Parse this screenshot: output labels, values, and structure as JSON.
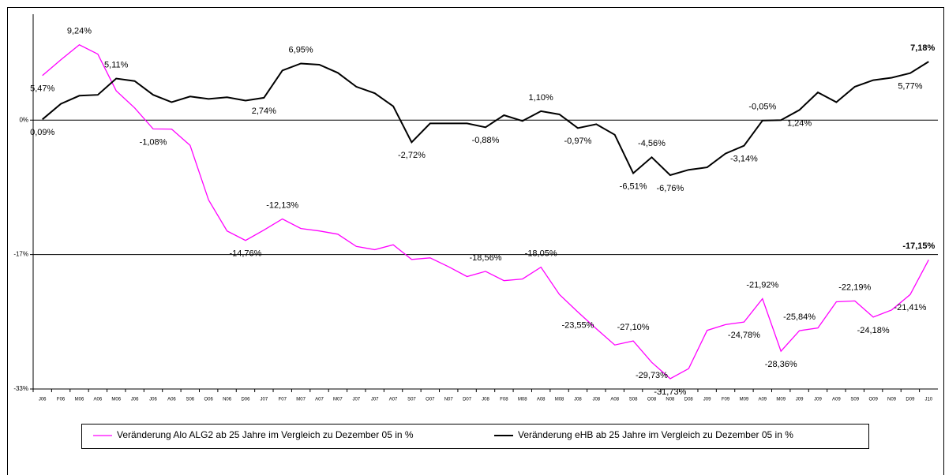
{
  "chart_data": {
    "type": "line",
    "categories": [
      "J06",
      "F06",
      "M06",
      "A06",
      "M06",
      "J06",
      "J06",
      "A06",
      "S06",
      "O06",
      "N06",
      "D06",
      "J07",
      "F07",
      "M07",
      "A07",
      "M07",
      "J07",
      "J07",
      "A07",
      "S07",
      "O07",
      "N07",
      "D07",
      "J08",
      "F08",
      "M08",
      "A08",
      "M08",
      "J08",
      "J08",
      "A08",
      "S08",
      "O08",
      "N08",
      "D08",
      "J09",
      "F09",
      "M09",
      "A09",
      "M09",
      "J09",
      "J09",
      "A09",
      "S09",
      "O09",
      "N09",
      "D09",
      "J10"
    ],
    "series": [
      {
        "name": "Veränderung Alo ALG2 ab 25 Jahre im Vergleich zu Dezember 05 in %",
        "color": "#ff00ff",
        "values": [
          5.47,
          7.4,
          9.24,
          8.1,
          3.6,
          1.5,
          -1.08,
          -1.1,
          -3.1,
          -9.8,
          -13.6,
          -14.76,
          -13.5,
          -12.13,
          -13.3,
          -13.6,
          -14.0,
          -15.5,
          -15.9,
          -15.3,
          -17.1,
          -16.9,
          -18.0,
          -19.2,
          -18.56,
          -19.7,
          -19.5,
          -18.05,
          -21.4,
          -23.55,
          -25.6,
          -27.6,
          -27.1,
          -29.73,
          -31.73,
          -30.5,
          -25.8,
          -25.1,
          -24.78,
          -21.92,
          -28.36,
          -25.84,
          -25.5,
          -22.3,
          -22.19,
          -24.18,
          -23.3,
          -21.41,
          -17.15
        ],
        "value_labels": [
          "5,47%",
          null,
          "9,24%",
          null,
          null,
          null,
          "-1,08%",
          null,
          null,
          null,
          null,
          "-14,76%",
          null,
          "-12,13%",
          null,
          null,
          null,
          null,
          null,
          null,
          null,
          null,
          null,
          null,
          "-18,56%",
          null,
          null,
          "-18,05%",
          null,
          "-23,55%",
          null,
          null,
          "-27,10%",
          "-29,73%",
          "-31,73%",
          null,
          null,
          null,
          "-24,78%",
          "-21,92%",
          "-28,36%",
          "-25,84%",
          null,
          null,
          "-22,19%",
          "-24,18%",
          null,
          "-21,41%",
          "-17,15%"
        ]
      },
      {
        "name": "Veränderung eHB ab 25 Jahre im Vergleich zu Dezember 05 in %",
        "color": "#000000",
        "values": [
          0.09,
          2.0,
          3.0,
          3.1,
          5.11,
          4.8,
          3.1,
          2.2,
          2.9,
          2.6,
          2.8,
          2.4,
          2.74,
          6.1,
          6.95,
          6.8,
          5.8,
          4.1,
          3.3,
          1.7,
          -2.72,
          -0.4,
          -0.4,
          -0.4,
          -0.88,
          0.6,
          -0.1,
          1.1,
          0.7,
          -0.97,
          -0.5,
          -1.8,
          -6.51,
          -4.56,
          -6.76,
          -6.1,
          -5.8,
          -4.1,
          -3.14,
          -0.05,
          0.0,
          1.24,
          3.4,
          2.2,
          4.1,
          4.9,
          5.2,
          5.77,
          7.18
        ],
        "value_labels": [
          "0,09%",
          null,
          null,
          null,
          "5,11%",
          null,
          null,
          null,
          null,
          null,
          null,
          null,
          "2,74%",
          null,
          "6,95%",
          null,
          null,
          null,
          null,
          null,
          "-2,72%",
          null,
          null,
          null,
          "-0,88%",
          null,
          null,
          "1,10%",
          null,
          "-0,97%",
          null,
          null,
          "-6,51%",
          "-4,56%",
          "-6,76%",
          null,
          null,
          null,
          "-3,14%",
          "-0,05%",
          null,
          "1,24%",
          null,
          null,
          null,
          null,
          null,
          "5,77%",
          "7,18%"
        ]
      }
    ],
    "ylim": [
      -33,
      13
    ],
    "yticks": [
      {
        "value": -33,
        "label": "-33%"
      },
      {
        "value": -16.5,
        "label": "-17%"
      },
      {
        "value": 0,
        "label": "0%"
      }
    ],
    "grid": true,
    "legend": "bottom"
  }
}
